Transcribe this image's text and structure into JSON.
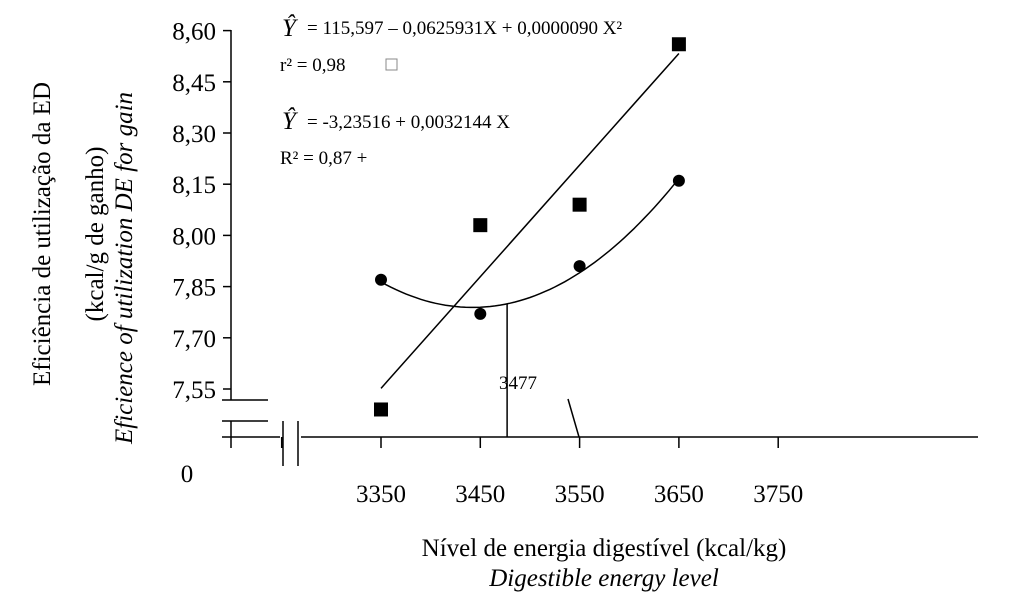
{
  "chart_data": {
    "type": "scatter",
    "xlabel": "Nível de energia digestível (kcal/kg)",
    "xlabel_en": "Digestible energy level",
    "ylabel": "Eficiência de utilização da ED",
    "ylabel2": "(kcal/g de ganho)",
    "ylabel_en": "Eficience of utilization DE for gain",
    "x_ticks": [
      3350,
      3450,
      3550,
      3650,
      3750
    ],
    "x_tick_labels": [
      "3350",
      "3450",
      "3550",
      "3650",
      "3750"
    ],
    "y_ticks": [
      7.55,
      7.7,
      7.85,
      8.0,
      8.15,
      8.3,
      8.45,
      8.6
    ],
    "y_tick_labels": [
      "7,55",
      "7,70",
      "7,85",
      "8,00",
      "8,15",
      "8,30",
      "8,45",
      "8,60"
    ],
    "origin_label": "0",
    "xlim": [
      3250,
      3750
    ],
    "ylim": [
      7.55,
      8.6
    ],
    "series": [
      {
        "marker": "circle",
        "points": [
          [
            3350,
            7.87
          ],
          [
            3450,
            7.77
          ],
          [
            3550,
            7.91
          ],
          [
            3650,
            8.16
          ]
        ],
        "fit": "quadratic"
      },
      {
        "marker": "square",
        "points": [
          [
            3350,
            7.49
          ],
          [
            3450,
            8.03
          ],
          [
            3550,
            8.09
          ],
          [
            3650,
            8.56
          ]
        ],
        "fit": "linear"
      }
    ],
    "annotations": {
      "eq1_yhat": "Ŷ",
      "eq1": "= 115,597 – 0,0625931X + 0,0000090 X²",
      "r2_1": "r² = 0,98",
      "eq2_yhat": "Ŷ",
      "eq2": "= -3,23516 + 0,0032144 X",
      "r2_2": "R² = 0,87 +",
      "vertex_label": "3477",
      "vertex_x": 3477
    }
  }
}
